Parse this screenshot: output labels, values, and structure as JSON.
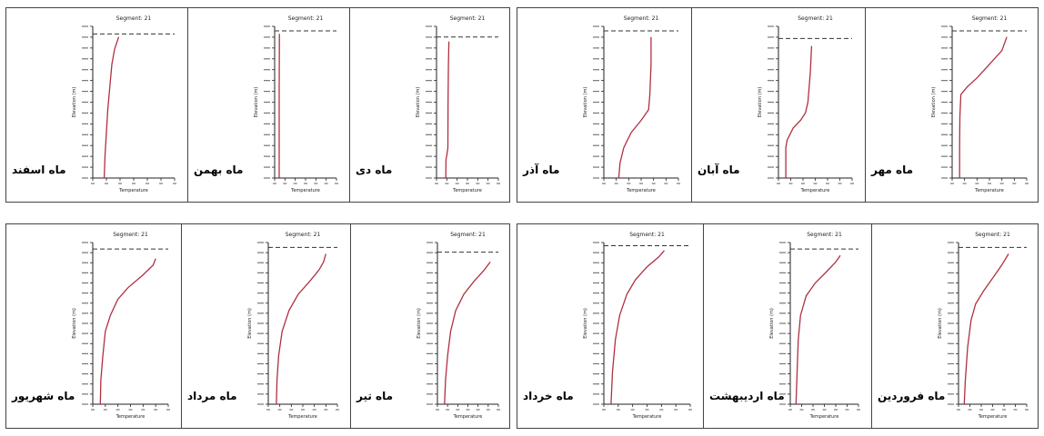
{
  "chart_data": [
    {
      "type": "line",
      "title": "Segment: 21",
      "month_label": "ماه اسفند",
      "xlabel": "Temperature",
      "ylabel": "Elevation (m)",
      "xlim": [
        0,
        30
      ],
      "ylim": [
        0,
        1
      ],
      "surface": 0.95,
      "series": [
        {
          "x": [
            4.2,
            4.5,
            5,
            5.5,
            6,
            6.5,
            7,
            8,
            9.5
          ],
          "y": [
            0,
            0.15,
            0.3,
            0.45,
            0.55,
            0.65,
            0.75,
            0.85,
            0.93
          ]
        }
      ]
    },
    {
      "type": "line",
      "title": "Segment: 21",
      "month_label": "ماه بهمن",
      "xlabel": "Temperature",
      "ylabel": "Elevation (m)",
      "xlim": [
        0,
        30
      ],
      "ylim": [
        0,
        1
      ],
      "surface": 0.97,
      "series": [
        {
          "x": [
            2.2,
            2.2,
            2.2,
            2.3,
            2.3
          ],
          "y": [
            0,
            0.3,
            0.6,
            0.85,
            0.95
          ]
        }
      ]
    },
    {
      "type": "line",
      "title": "Segment: 21",
      "month_label": "ماه دی",
      "xlabel": "Temperature",
      "ylabel": "Elevation (m)",
      "xlim": [
        0,
        30
      ],
      "ylim": [
        0,
        1
      ],
      "surface": 0.93,
      "series": [
        {
          "x": [
            4.5,
            4.6,
            5,
            5.5,
            5.6,
            5.8,
            6
          ],
          "y": [
            0,
            0.12,
            0.15,
            0.2,
            0.5,
            0.75,
            0.9
          ]
        }
      ]
    },
    {
      "type": "line",
      "title": "Segment: 21",
      "month_label": "ماه آذر",
      "xlabel": "Temperature",
      "ylabel": "Elevation (m)",
      "xlim": [
        0,
        30
      ],
      "ylim": [
        0,
        1
      ],
      "surface": 0.97,
      "series": [
        {
          "x": [
            6,
            6.5,
            8,
            11,
            15,
            18,
            18.5,
            19,
            19
          ],
          "y": [
            0,
            0.1,
            0.2,
            0.3,
            0.38,
            0.45,
            0.55,
            0.75,
            0.93
          ]
        }
      ]
    },
    {
      "type": "line",
      "title": "Segment: 21",
      "month_label": "ماه آبان",
      "xlabel": "Temperature",
      "ylabel": "Elevation (m)",
      "xlim": [
        0,
        30
      ],
      "ylim": [
        0,
        1
      ],
      "surface": 0.92,
      "series": [
        {
          "x": [
            3,
            3,
            3.5,
            6,
            9,
            11,
            12,
            13,
            13.5
          ],
          "y": [
            0,
            0.2,
            0.25,
            0.33,
            0.38,
            0.43,
            0.5,
            0.7,
            0.87
          ]
        }
      ]
    },
    {
      "type": "line",
      "title": "Segment: 21",
      "month_label": "ماه مهر",
      "xlabel": "Temperature",
      "ylabel": "Elevation (m)",
      "xlim": [
        0,
        30
      ],
      "ylim": [
        0,
        1
      ],
      "surface": 0.97,
      "series": [
        {
          "x": [
            3,
            3,
            3.1,
            3.5,
            6,
            10,
            15,
            20,
            22
          ],
          "y": [
            0,
            0.2,
            0.4,
            0.55,
            0.6,
            0.66,
            0.75,
            0.84,
            0.93
          ]
        }
      ]
    },
    {
      "type": "line",
      "title": "Segment: 21",
      "month_label": "ماه شهریور",
      "xlabel": "Temperature",
      "ylabel": "Elevation (m)",
      "xlim": [
        0,
        30
      ],
      "ylim": [
        0,
        1
      ],
      "surface": 0.96,
      "series": [
        {
          "x": [
            3,
            3.2,
            4,
            5,
            7,
            10,
            14,
            20,
            24,
            25
          ],
          "y": [
            0,
            0.15,
            0.3,
            0.45,
            0.55,
            0.65,
            0.72,
            0.8,
            0.86,
            0.9
          ]
        }
      ]
    },
    {
      "type": "line",
      "title": "Segment: 21",
      "month_label": "ماه مرداد",
      "xlabel": "Temperature",
      "ylabel": "Elevation (m)",
      "xlim": [
        0,
        30
      ],
      "ylim": [
        0,
        1
      ],
      "surface": 0.97,
      "series": [
        {
          "x": [
            3.5,
            3.8,
            4.5,
            6,
            9,
            13,
            18,
            22,
            24,
            25
          ],
          "y": [
            0,
            0.15,
            0.3,
            0.45,
            0.58,
            0.68,
            0.76,
            0.83,
            0.88,
            0.93
          ]
        }
      ]
    },
    {
      "type": "line",
      "title": "Segment: 21",
      "month_label": "ماه تیر",
      "xlabel": "Temperature",
      "ylabel": "Elevation (m)",
      "xlim": [
        0,
        30
      ],
      "ylim": [
        0,
        1
      ],
      "surface": 0.94,
      "series": [
        {
          "x": [
            3.5,
            4,
            5,
            6.5,
            9,
            13,
            18,
            23,
            26
          ],
          "y": [
            0,
            0.15,
            0.3,
            0.45,
            0.58,
            0.68,
            0.76,
            0.83,
            0.88
          ]
        }
      ]
    },
    {
      "type": "line",
      "title": "Segment: 21",
      "month_label": "ماه خرداد",
      "xlabel": "Temperature",
      "ylabel": "Elevation (m)",
      "xlim": [
        0,
        30
      ],
      "ylim": [
        0,
        1
      ],
      "surface": 0.98,
      "series": [
        {
          "x": [
            2.5,
            3,
            4,
            5.5,
            8,
            11,
            15,
            19,
            21
          ],
          "y": [
            0,
            0.2,
            0.4,
            0.55,
            0.68,
            0.77,
            0.85,
            0.91,
            0.95
          ]
        }
      ]
    },
    {
      "type": "line",
      "title": "Segment: 21",
      "month_label": "ماه اردیبهشت",
      "xlabel": "Temperature",
      "ylabel": "Elevation (m)",
      "xlim": [
        0,
        30
      ],
      "ylim": [
        0,
        1
      ],
      "surface": 0.96,
      "series": [
        {
          "x": [
            2.5,
            3,
            3.5,
            4.5,
            7,
            11,
            16,
            20,
            22
          ],
          "y": [
            0,
            0.2,
            0.4,
            0.55,
            0.67,
            0.75,
            0.82,
            0.88,
            0.92
          ]
        }
      ]
    },
    {
      "type": "line",
      "title": "Segment: 21",
      "month_label": "ماه فروردین",
      "xlabel": "Temperature",
      "ylabel": "Elevation (m)",
      "xlim": [
        0,
        30
      ],
      "ylim": [
        0,
        1
      ],
      "surface": 0.97,
      "series": [
        {
          "x": [
            2.5,
            3,
            4,
            5.5,
            7.5,
            11,
            15,
            19,
            22
          ],
          "y": [
            0,
            0.15,
            0.35,
            0.52,
            0.62,
            0.7,
            0.78,
            0.86,
            0.93
          ]
        }
      ]
    }
  ],
  "colors": {
    "curve": "#b03040",
    "axis": "#222222",
    "surface_line": "#333333",
    "frame": "#444444"
  }
}
